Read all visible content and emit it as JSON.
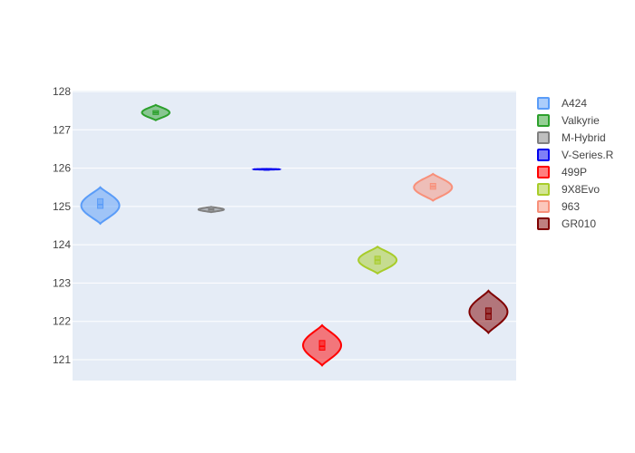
{
  "chart_data": {
    "type": "violin",
    "title": "",
    "xlabel": "",
    "ylabel": "",
    "ylim": [
      120.5,
      128.2
    ],
    "yticks": [
      121,
      122,
      123,
      124,
      125,
      126,
      127,
      128
    ],
    "grid": true,
    "legend_position": "right",
    "series": [
      {
        "name": "A424",
        "color": "#5a9cf8",
        "min": 124.55,
        "q1": 124.95,
        "median": 125.05,
        "q3": 125.2,
        "max": 125.5,
        "half_width": 0.5
      },
      {
        "name": "Valkyrie",
        "color": "#2ca02c",
        "min": 127.25,
        "q1": 127.4,
        "median": 127.45,
        "q3": 127.5,
        "max": 127.65,
        "half_width": 0.5
      },
      {
        "name": "M-Hybrid",
        "color": "#808080",
        "min": 124.85,
        "q1": 124.9,
        "median": 124.92,
        "q3": 124.94,
        "max": 124.99,
        "half_width": 0.5
      },
      {
        "name": "V-Series.R",
        "color": "#0000ee",
        "min": 125.96,
        "q1": 125.97,
        "median": 125.97,
        "q3": 125.97,
        "max": 125.98,
        "half_width": 0.5
      },
      {
        "name": "499P",
        "color": "#ff0000",
        "min": 120.85,
        "q1": 121.25,
        "median": 121.35,
        "q3": 121.5,
        "max": 121.9,
        "half_width": 0.5
      },
      {
        "name": "9X8Evo",
        "color": "#a8cc2a",
        "min": 123.25,
        "q1": 123.5,
        "median": 123.6,
        "q3": 123.7,
        "max": 123.95,
        "half_width": 0.5
      },
      {
        "name": "963",
        "color": "#f8907a",
        "min": 125.15,
        "q1": 125.45,
        "median": 125.52,
        "q3": 125.6,
        "max": 125.85,
        "half_width": 0.5
      },
      {
        "name": "GR010",
        "color": "#800000",
        "min": 121.7,
        "q1": 122.05,
        "median": 122.2,
        "q3": 122.35,
        "max": 122.8,
        "half_width": 0.5
      }
    ]
  }
}
